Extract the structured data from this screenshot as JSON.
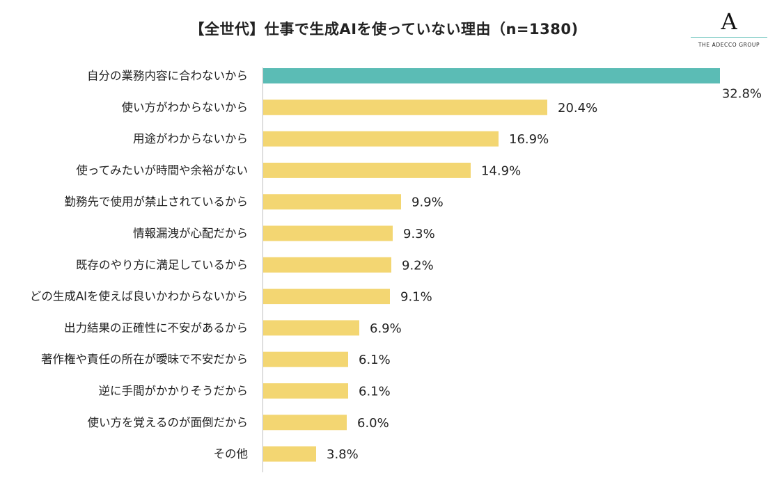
{
  "chart_data": {
    "type": "bar",
    "orientation": "horizontal",
    "title": "【全世代】仕事で生成AIを使っていない理由（n=1380)",
    "unit": "%",
    "categories": [
      "自分の業務内容に合わないから",
      "使い方がわからないから",
      "用途がわからないから",
      "使ってみたいが時間や余裕がない",
      "勤務先で使用が禁止されているから",
      "情報漏洩が心配だから",
      "既存のやり方に満足しているから",
      "どの生成AIを使えば良いかわからないから",
      "出力結果の正確性に不安があるから",
      "著作権や責任の所在が曖昧で不安だから",
      "逆に手間がかかりそうだから",
      "使い方を覚えるのが面倒だから",
      "その他"
    ],
    "values": [
      32.8,
      20.4,
      16.9,
      14.9,
      9.9,
      9.3,
      9.2,
      9.1,
      6.9,
      6.1,
      6.1,
      6.0,
      3.8
    ],
    "value_labels": [
      "32.8%",
      "20.4%",
      "16.9%",
      "14.9%",
      "9.9%",
      "9.3%",
      "9.2%",
      "9.1%",
      "6.9%",
      "6.1%",
      "6.1%",
      "6.0%",
      "3.8%"
    ],
    "colors": {
      "highlight": "#5bbcb5",
      "default": "#f3d672",
      "axis": "#bfbfbf"
    },
    "highlight_index": 0
  },
  "logo": {
    "mark": "A",
    "text": "THE ADECCO GROUP"
  }
}
